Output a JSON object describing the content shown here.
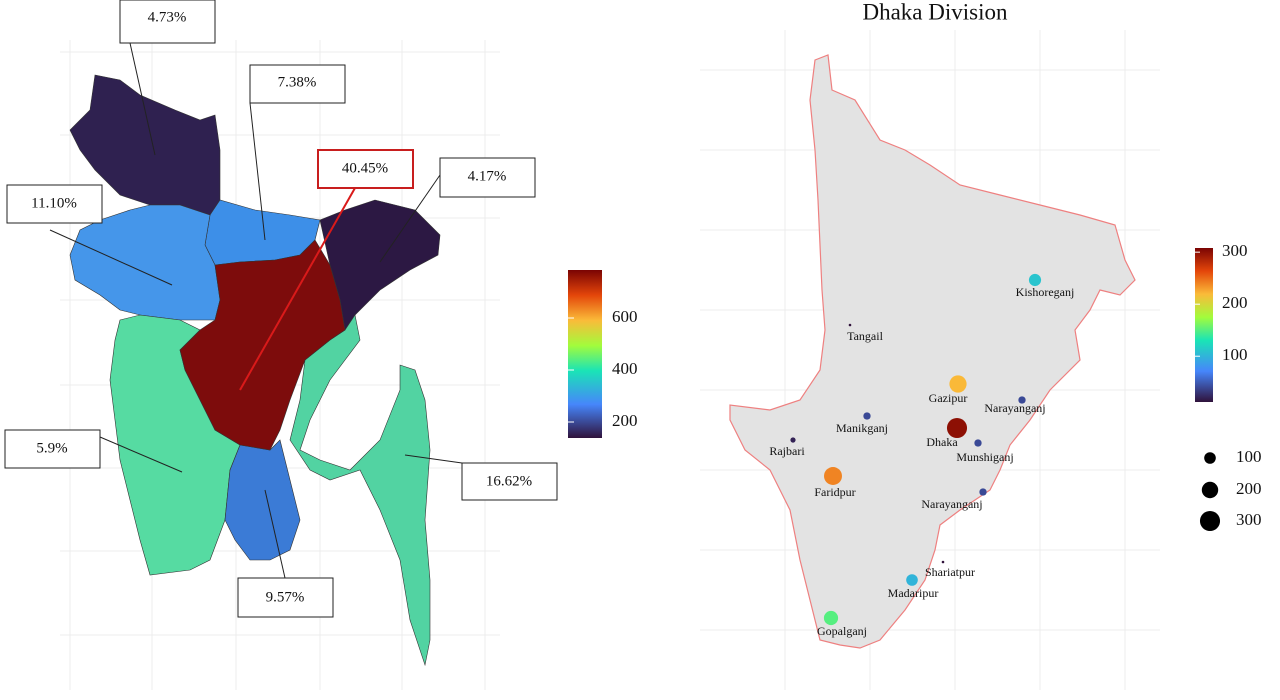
{
  "bangladesh_map": {
    "regions": [
      {
        "label": "4.73%"
      },
      {
        "label": "7.38%"
      },
      {
        "label": "40.45%"
      },
      {
        "label": "4.17%"
      },
      {
        "label": "11.10%"
      },
      {
        "label": "5.9%"
      },
      {
        "label": "16.62%"
      },
      {
        "label": "9.57%"
      }
    ],
    "color_legend_ticks": [
      200,
      400,
      600
    ]
  },
  "dhaka_map": {
    "title": "Dhaka Division",
    "districts": [
      {
        "name": "Kishoreganj",
        "value": 110
      },
      {
        "name": "Tangail",
        "value": 5
      },
      {
        "name": "Gazipur",
        "value": 220
      },
      {
        "name": "Narayanganj",
        "value": 40
      },
      {
        "name": "Manikganj",
        "value": 40
      },
      {
        "name": "Dhaka",
        "value": 300
      },
      {
        "name": "Rajbari",
        "value": 20
      },
      {
        "name": "Munshiganj",
        "value": 40
      },
      {
        "name": "Faridpur",
        "value": 240
      },
      {
        "name": "Narayanganj",
        "value": 40
      },
      {
        "name": "Shariatpur",
        "value": 5
      },
      {
        "name": "Madaripur",
        "value": 100
      },
      {
        "name": "Gopalganj",
        "value": 150
      }
    ],
    "color_legend_ticks": [
      100,
      200,
      300
    ],
    "size_legend": [
      100,
      200,
      300
    ]
  }
}
